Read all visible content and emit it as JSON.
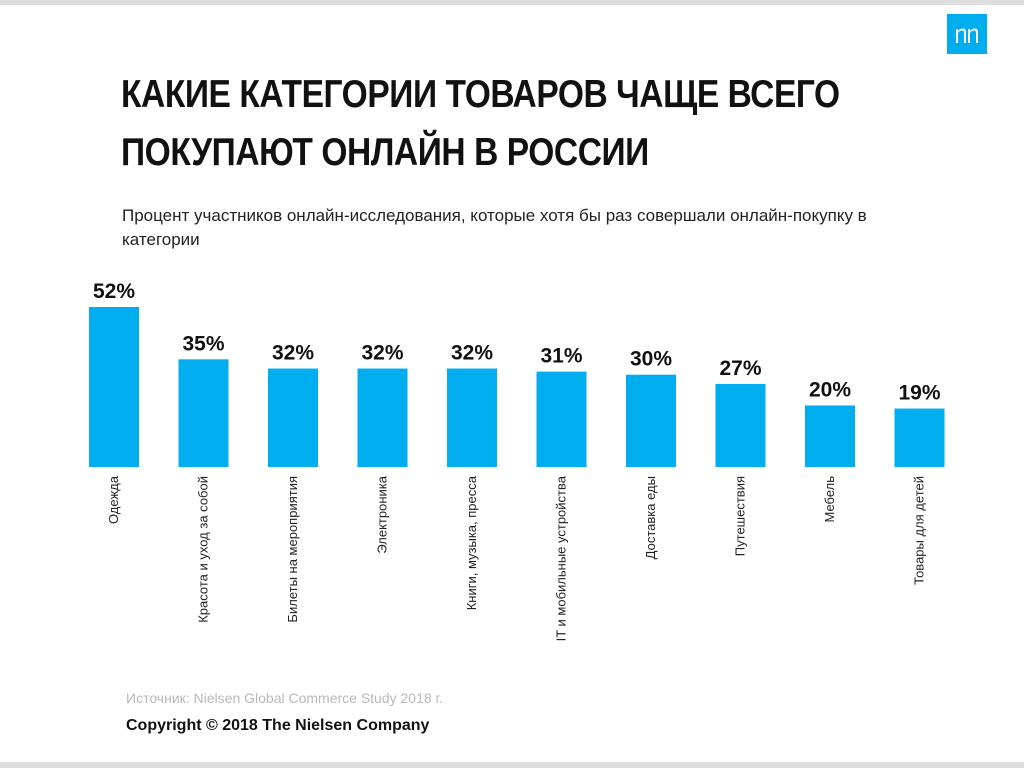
{
  "header": {
    "title": "Какие категории товаров чаще всего покупают онлайн в России",
    "subtitle": "Процент участников онлайн-исследования, которые хотя бы раз совершали онлайн-покупку в категории"
  },
  "brand": {
    "logo_icon": "nielsen-logo-icon",
    "accent_color": "#00aeef",
    "frame_color": "#dedede"
  },
  "chart_data": {
    "type": "bar",
    "categories": [
      "Одежда",
      "Красота и уход за собой",
      "Билеты на мероприятия",
      "Электроника",
      "Книги, музыка, пресса",
      "IT и мобильные устройства",
      "Доставка еды",
      "Путешествия",
      "Мебель",
      "Товары для детей"
    ],
    "values": [
      52,
      35,
      32,
      32,
      32,
      31,
      30,
      27,
      20,
      19
    ],
    "value_labels": [
      "52%",
      "35%",
      "32%",
      "32%",
      "32%",
      "31%",
      "30%",
      "27%",
      "20%",
      "19%"
    ],
    "unit": "%",
    "title": "",
    "xlabel": "",
    "ylabel": "",
    "ylim": [
      0,
      52
    ],
    "grid": false,
    "legend": "none",
    "bar_color": "#00aeef"
  },
  "footer": {
    "source": "Источник: Nielsen Global Commerce Study 2018 г.",
    "copyright": "Copyright © 2018 The Nielsen Company"
  }
}
